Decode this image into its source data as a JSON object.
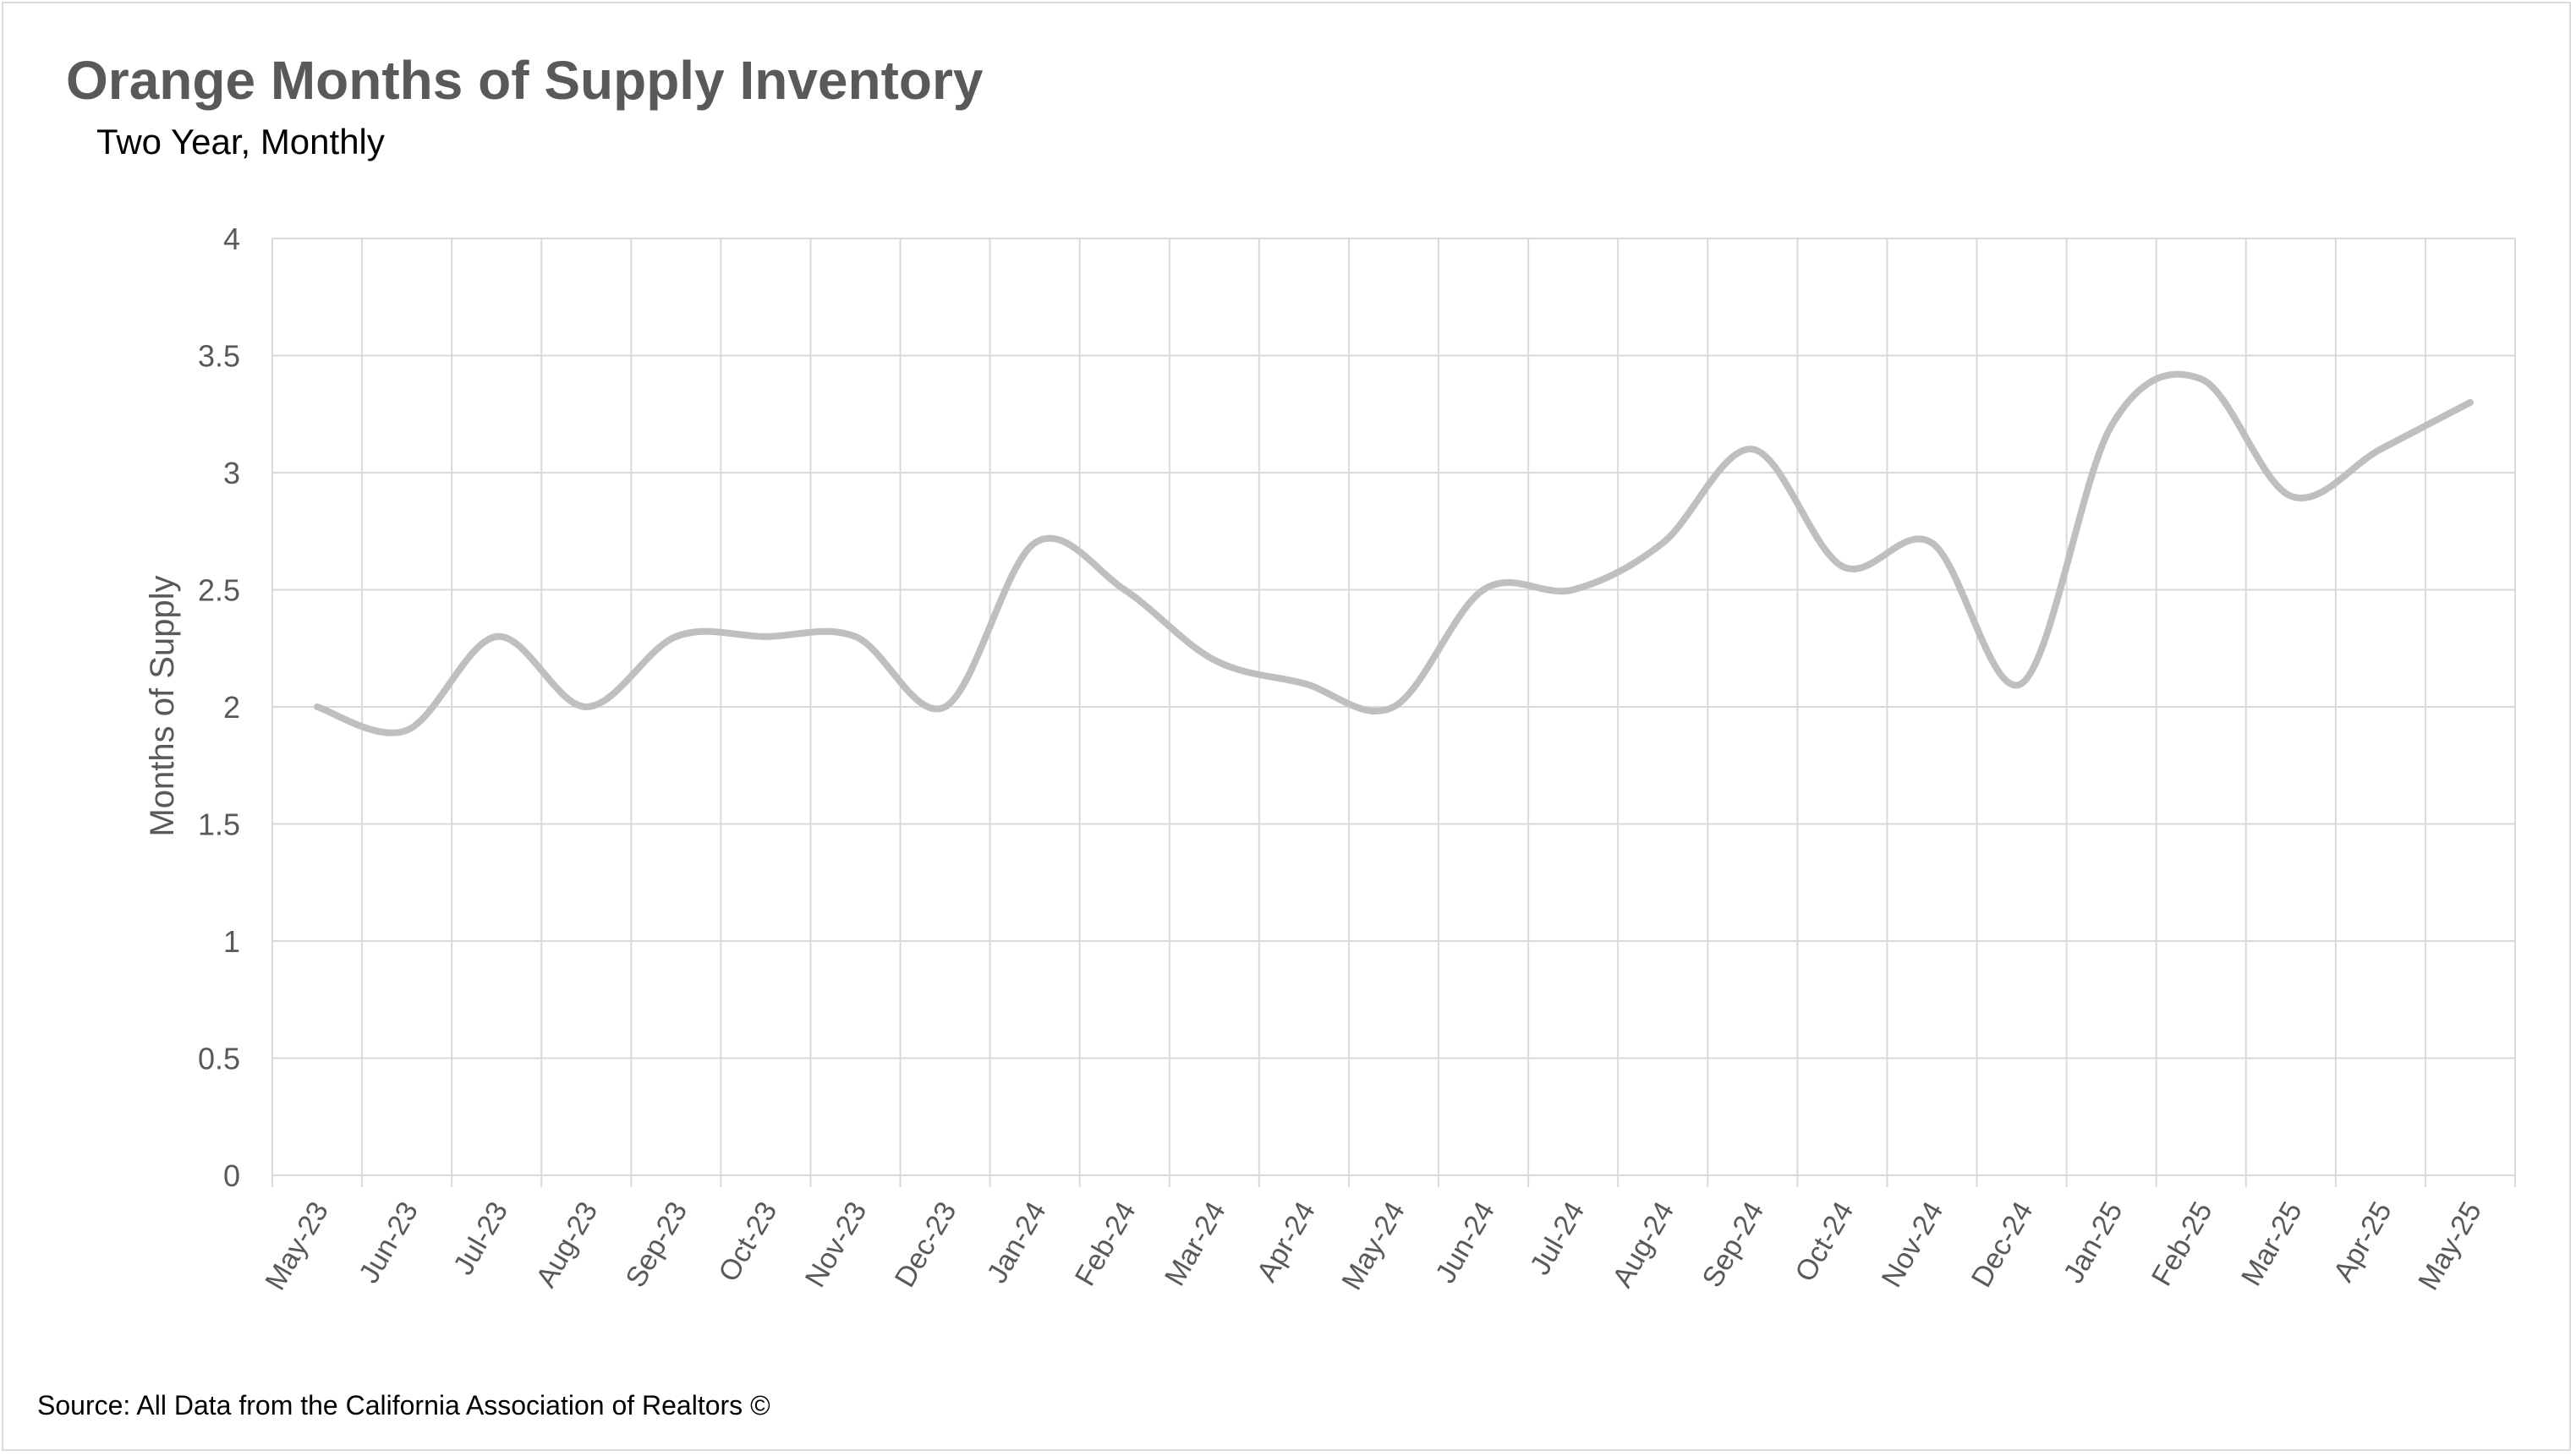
{
  "chart_data": {
    "type": "line",
    "title": "Orange Months of Supply Inventory",
    "subtitle": "Two Year, Monthly",
    "xlabel": "",
    "ylabel": "Months of Supply",
    "categories": [
      "May-23",
      "Jun-23",
      "Jul-23",
      "Aug-23",
      "Sep-23",
      "Oct-23",
      "Nov-23",
      "Dec-23",
      "Jan-24",
      "Feb-24",
      "Mar-24",
      "Apr-24",
      "May-24",
      "Jun-24",
      "Jul-24",
      "Aug-24",
      "Sep-24",
      "Oct-24",
      "Nov-24",
      "Dec-24",
      "Jan-25",
      "Feb-25",
      "Mar-25",
      "Apr-25",
      "May-25"
    ],
    "series": [
      {
        "values": [
          2.0,
          1.9,
          2.3,
          2.0,
          2.3,
          2.3,
          2.3,
          2.0,
          2.7,
          2.5,
          2.2,
          2.1,
          2.0,
          2.5,
          2.5,
          2.7,
          3.1,
          2.6,
          2.7,
          2.1,
          3.2,
          3.4,
          2.9,
          3.1,
          3.3
        ]
      }
    ],
    "ylim": [
      0,
      4
    ],
    "yticks": [
      "0",
      "0.5",
      "1",
      "1.5",
      "2",
      "2.5",
      "3",
      "3.5",
      "4"
    ],
    "grid": true,
    "smoothed": true,
    "line_color": "#bfbfbf",
    "source": "Source: All Data from the California Association of Realtors ©"
  }
}
